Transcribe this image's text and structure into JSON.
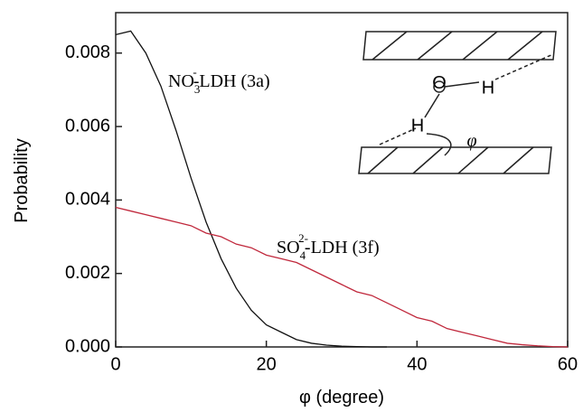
{
  "chart_data": {
    "type": "line",
    "x_label": "φ (degree)",
    "y_label": "Probability",
    "x": [
      0,
      2,
      4,
      6,
      8,
      10,
      12,
      14,
      16,
      18,
      20,
      22,
      24,
      26,
      28,
      30,
      32,
      34,
      36,
      38,
      40,
      42,
      44,
      46,
      48,
      50,
      52,
      54,
      56,
      58,
      60
    ],
    "series": [
      {
        "color": "#111111",
        "values": [
          0.0085,
          0.0086,
          0.008,
          0.0071,
          0.0059,
          0.0046,
          0.0034,
          0.0024,
          0.0016,
          0.001,
          0.0006,
          0.0004,
          0.0002,
          0.0001,
          5e-05,
          2e-05,
          1e-05,
          0,
          0,
          null,
          null,
          null,
          null,
          null,
          null,
          null,
          null,
          null,
          null,
          null,
          null
        ]
      },
      {
        "color": "#c0283c",
        "values": [
          0.0038,
          0.0037,
          0.0036,
          0.0035,
          0.0034,
          0.0033,
          0.0031,
          0.003,
          0.0028,
          0.0027,
          0.0025,
          0.0024,
          0.0023,
          0.0021,
          0.0019,
          0.0017,
          0.0015,
          0.0014,
          0.0012,
          0.001,
          0.0008,
          0.0007,
          0.0005,
          0.0004,
          0.0003,
          0.0002,
          0.0001,
          6e-05,
          3e-05,
          1e-05,
          0
        ]
      }
    ],
    "annotations": [
      {
        "main": "NO",
        "sub": "3",
        "sup": "-",
        "rest": "-LDH (3a)"
      },
      {
        "main": "SO",
        "sub": "4",
        "sup": "2-",
        "rest": "-LDH (3f)"
      }
    ],
    "inset_labels": [
      "O",
      "H",
      "H",
      "φ"
    ],
    "xlim": [
      0,
      60
    ],
    "xticks": [
      0,
      20,
      40,
      60
    ],
    "ylim": [
      0,
      0.0091
    ],
    "yticks": [
      {
        "value": 0,
        "label": "0.000"
      },
      {
        "value": 0.002,
        "label": "0.002"
      },
      {
        "value": 0.004,
        "label": "0.004"
      },
      {
        "value": 0.006,
        "label": "0.006"
      },
      {
        "value": 0.008,
        "label": "0.008"
      }
    ]
  }
}
